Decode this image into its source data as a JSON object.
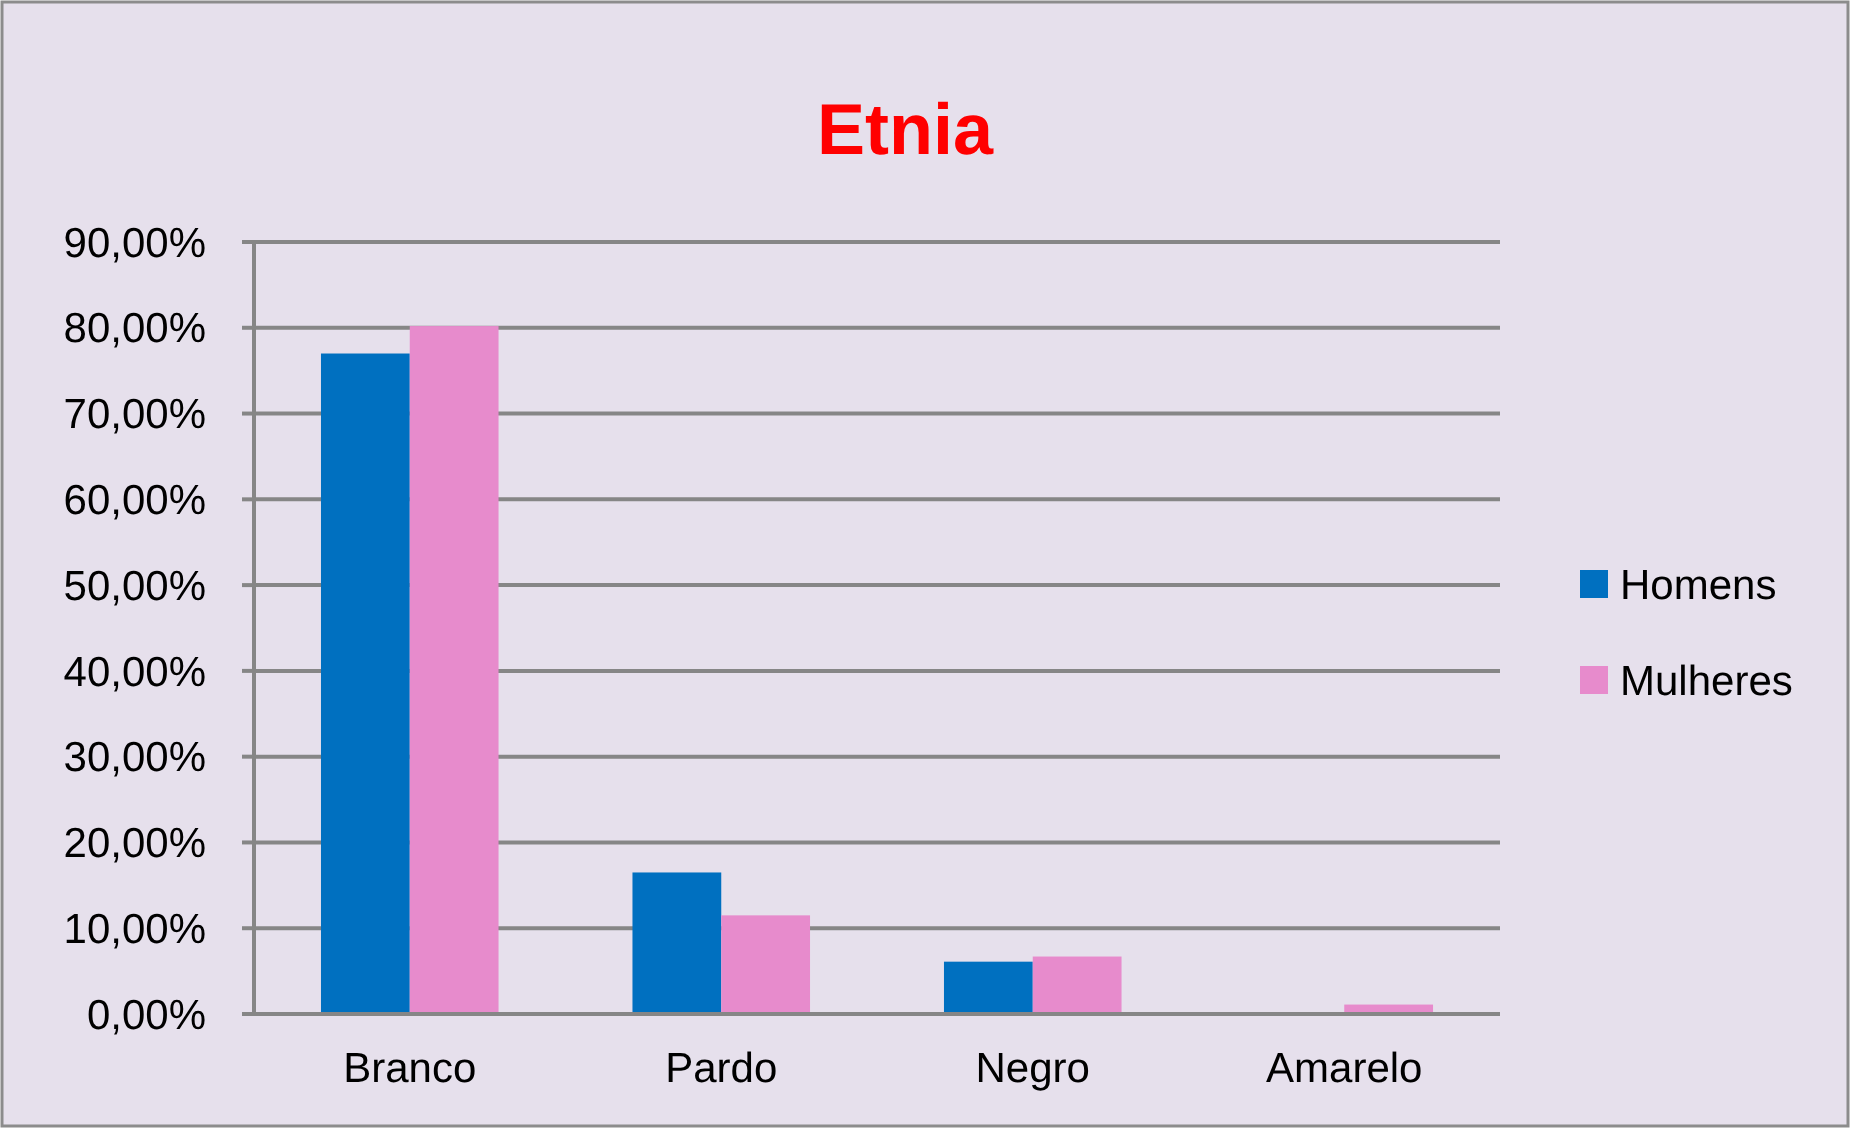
{
  "chart_data": {
    "type": "bar",
    "title": "Etnia",
    "categories": [
      "Branco",
      "Pardo",
      "Negro",
      "Amarelo"
    ],
    "series": [
      {
        "name": "Homens",
        "color": "#0070c0",
        "values": [
          77.0,
          16.5,
          6.1,
          0
        ]
      },
      {
        "name": "Mulheres",
        "color": "#e78bcc",
        "values": [
          80.2,
          11.5,
          6.7,
          1.1
        ]
      }
    ],
    "ylim": [
      0,
      90
    ],
    "yticks": [
      {
        "value": 0,
        "label": "0,00%"
      },
      {
        "value": 10,
        "label": "10,00%"
      },
      {
        "value": 20,
        "label": "20,00%"
      },
      {
        "value": 30,
        "label": "30,00%"
      },
      {
        "value": 40,
        "label": "40,00%"
      },
      {
        "value": 50,
        "label": "50,00%"
      },
      {
        "value": 60,
        "label": "60,00%"
      },
      {
        "value": 70,
        "label": "70,00%"
      },
      {
        "value": 80,
        "label": "80,00%"
      },
      {
        "value": 90,
        "label": "90,00%"
      }
    ],
    "grid": "y",
    "legend": "right"
  }
}
